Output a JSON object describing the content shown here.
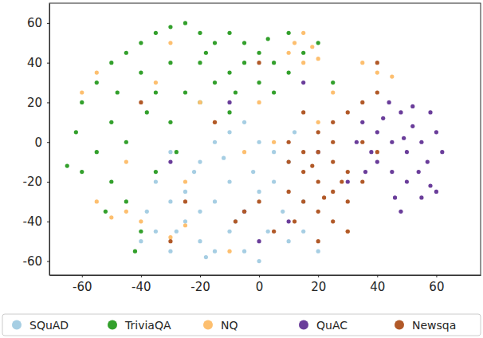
{
  "chart_data": {
    "type": "scatter",
    "xlim": [
      -71,
      75
    ],
    "ylim": [
      -67,
      70
    ],
    "xticks": [
      -60,
      -40,
      -20,
      0,
      20,
      40,
      60
    ],
    "yticks": [
      -60,
      -40,
      -20,
      0,
      20,
      40,
      60
    ],
    "grid": false,
    "legend": "bottom",
    "marker": "circle",
    "series": [
      {
        "name": "SQuAD",
        "color": "#a6cee3",
        "x": [
          -35,
          -30,
          -25,
          -20,
          -15,
          -10,
          -5,
          0,
          5,
          10,
          -20,
          -15,
          -10,
          -5,
          0,
          5,
          -30,
          -25,
          -15,
          -5,
          0,
          10,
          15,
          -35,
          -40,
          -30,
          -20,
          -10,
          15,
          -8,
          3,
          -22,
          -12,
          8,
          -2,
          20,
          -28,
          -18,
          12,
          -38
        ],
        "values": [
          -20,
          -30,
          -40,
          -50,
          -55,
          -45,
          -35,
          -25,
          -20,
          -10,
          -10,
          0,
          5,
          10,
          0,
          -5,
          -5,
          -25,
          -30,
          -55,
          -60,
          -50,
          -45,
          -45,
          -50,
          -55,
          -35,
          -20,
          -30,
          -40,
          -45,
          -15,
          -8,
          -35,
          -15,
          -55,
          -45,
          -58,
          5,
          -35
        ]
      },
      {
        "name": "TriviaQA",
        "color": "#33a02c",
        "x": [
          -60,
          -55,
          -50,
          -45,
          -40,
          -35,
          -30,
          -25,
          -20,
          -15,
          -10,
          -5,
          0,
          5,
          10,
          -40,
          -30,
          -20,
          -10,
          0,
          -50,
          -45,
          -55,
          -60,
          -65,
          -50,
          -45,
          -40,
          -35,
          -30,
          -20,
          -10,
          5,
          15,
          20,
          -25,
          -35,
          -15,
          -5,
          10,
          -62,
          -48,
          -38,
          -28,
          25,
          -42,
          -52,
          -8,
          3,
          -18
        ],
        "values": [
          20,
          30,
          40,
          45,
          50,
          55,
          58,
          60,
          55,
          50,
          55,
          50,
          45,
          40,
          35,
          35,
          40,
          40,
          35,
          30,
          10,
          0,
          -5,
          -15,
          -12,
          -20,
          -30,
          -45,
          -15,
          10,
          20,
          15,
          25,
          45,
          50,
          25,
          25,
          30,
          40,
          55,
          5,
          25,
          15,
          -5,
          30,
          -55,
          -35,
          25,
          52,
          45
        ]
      },
      {
        "name": "NQ",
        "color": "#fdbf6f",
        "x": [
          12,
          15,
          18,
          10,
          20,
          15,
          35,
          40,
          45,
          -50,
          -45,
          -55,
          -40,
          -30,
          -25,
          -20,
          -35,
          -55,
          -60,
          -15,
          -5,
          5,
          -45,
          30,
          -10,
          0,
          25,
          -30,
          20,
          -25
        ],
        "values": [
          50,
          55,
          48,
          45,
          42,
          40,
          40,
          35,
          33,
          -38,
          -35,
          -30,
          -40,
          -48,
          -42,
          20,
          30,
          35,
          25,
          10,
          -5,
          0,
          -10,
          -45,
          -55,
          20,
          25,
          50,
          10,
          -20
        ]
      },
      {
        "name": "QuAC",
        "color": "#6a3d9a",
        "x": [
          35,
          40,
          45,
          50,
          55,
          60,
          48,
          52,
          58,
          40,
          45,
          50,
          55,
          60,
          42,
          38,
          52,
          57,
          62,
          46,
          33,
          44,
          30,
          48,
          58,
          20,
          -5,
          10,
          -30,
          -10,
          0,
          15,
          36,
          54,
          49
        ],
        "values": [
          10,
          5,
          0,
          -5,
          0,
          5,
          15,
          18,
          15,
          -10,
          -15,
          -20,
          -28,
          -25,
          12,
          -5,
          8,
          -10,
          -5,
          -28,
          0,
          20,
          -20,
          -35,
          -22,
          -5,
          -35,
          -40,
          -10,
          20,
          -50,
          30,
          -15,
          -15,
          2
        ]
      },
      {
        "name": "Newsqa",
        "color": "#b15928",
        "x": [
          10,
          15,
          20,
          25,
          15,
          20,
          25,
          30,
          10,
          15,
          20,
          25,
          30,
          35,
          20,
          25,
          30,
          35,
          40,
          15,
          -5,
          -8,
          0,
          5,
          20,
          30,
          35,
          40,
          10,
          25,
          28,
          18,
          22,
          -25,
          -15,
          0,
          -40,
          -30,
          40,
          12
        ],
        "values": [
          -10,
          -15,
          -20,
          -25,
          -5,
          -5,
          -10,
          -15,
          -25,
          -30,
          -35,
          -40,
          -30,
          -20,
          5,
          10,
          15,
          20,
          25,
          15,
          -35,
          -40,
          -30,
          -45,
          -50,
          -45,
          0,
          -5,
          0,
          0,
          -20,
          -12,
          -28,
          -30,
          10,
          40,
          20,
          -50,
          40,
          -40
        ]
      }
    ]
  }
}
